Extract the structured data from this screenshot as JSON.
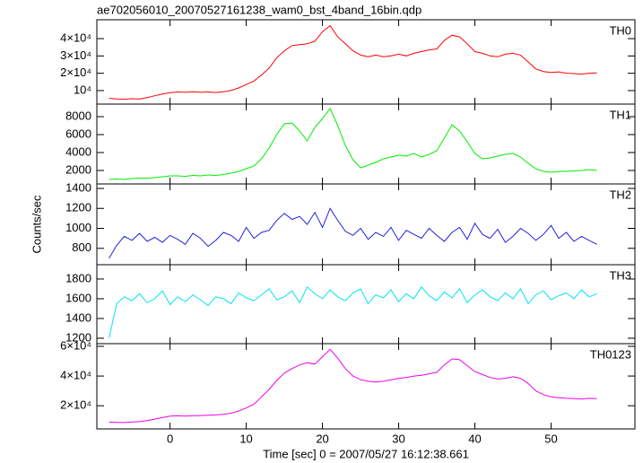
{
  "chart_data": {
    "type": "line",
    "title": "ae702056010_20070527161238_wam0_bst_4band_16bin.qdp",
    "xlabel": "Time [sec] 0 = 2007/05/27 16:12:38.661",
    "ylabel": "Counts/sec",
    "xlim": [
      -9.6,
      61
    ],
    "xticks": [
      0,
      10,
      20,
      30,
      40,
      50
    ],
    "x": [
      -8,
      -7,
      -6,
      -5,
      -4,
      -3,
      -2,
      -1,
      0,
      1,
      2,
      3,
      4,
      5,
      6,
      7,
      8,
      9,
      10,
      11,
      12,
      13,
      14,
      15,
      16,
      17,
      18,
      19,
      20,
      21,
      22,
      23,
      24,
      25,
      26,
      27,
      28,
      29,
      30,
      31,
      32,
      33,
      34,
      35,
      36,
      37,
      38,
      39,
      40,
      41,
      42,
      43,
      44,
      45,
      46,
      47,
      48,
      49,
      50,
      51,
      52,
      53,
      54,
      55,
      56
    ],
    "series": [
      {
        "name": "TH0",
        "color": "#ff0000",
        "ylim": [
          2200,
          50900
        ],
        "yticks": [
          {
            "value": 10000,
            "label": "10⁴"
          },
          {
            "value": 20000,
            "label": "2×10⁴"
          },
          {
            "value": 30000,
            "label": "3×10⁴"
          },
          {
            "value": 40000,
            "label": "4×10⁴"
          }
        ],
        "values": [
          5500,
          5200,
          5000,
          5300,
          5100,
          6000,
          7000,
          8000,
          8800,
          9200,
          9000,
          9300,
          9000,
          9200,
          8900,
          9300,
          10000,
          11500,
          13500,
          15500,
          19000,
          23000,
          29000,
          33000,
          36000,
          36500,
          37000,
          38500,
          44000,
          47500,
          41000,
          37000,
          33000,
          30500,
          29500,
          30500,
          29500,
          30000,
          31000,
          30000,
          31500,
          32500,
          33500,
          34000,
          39000,
          42000,
          41000,
          37000,
          32500,
          31500,
          30000,
          29500,
          31000,
          31500,
          30500,
          26500,
          22500,
          21000,
          20500,
          20800,
          20000,
          19800,
          19500,
          20000,
          20200
        ]
      },
      {
        "name": "TH1",
        "color": "#00ee00",
        "ylim": [
          500,
          9400
        ],
        "yticks": [
          2000,
          4000,
          6000,
          8000
        ],
        "values": [
          1000,
          1050,
          1000,
          1100,
          1150,
          1150,
          1200,
          1300,
          1400,
          1400,
          1350,
          1450,
          1400,
          1500,
          1450,
          1550,
          1700,
          1900,
          2200,
          2500,
          3300,
          4500,
          6000,
          7200,
          7300,
          6400,
          5300,
          6800,
          7800,
          8900,
          7000,
          4800,
          3200,
          2300,
          2600,
          2900,
          3300,
          3500,
          3700,
          3600,
          3900,
          3500,
          3800,
          4200,
          5600,
          7100,
          6400,
          5200,
          3900,
          3300,
          3400,
          3600,
          3800,
          3900,
          3500,
          2800,
          2200,
          1900,
          1800,
          1900,
          1900,
          1950,
          2000,
          2100,
          2000
        ]
      },
      {
        "name": "TH2",
        "color": "#2222dd",
        "ylim": [
          636,
          1445
        ],
        "yticks": [
          800,
          1000,
          1200,
          1400
        ],
        "values": [
          700,
          830,
          920,
          880,
          950,
          870,
          910,
          860,
          930,
          890,
          840,
          950,
          900,
          820,
          880,
          960,
          930,
          870,
          1010,
          900,
          960,
          980,
          1080,
          1150,
          1090,
          1120,
          1040,
          1160,
          1010,
          1200,
          1080,
          970,
          930,
          1000,
          890,
          960,
          920,
          1010,
          880,
          980,
          940,
          900,
          1000,
          930,
          870,
          960,
          1010,
          890,
          1050,
          940,
          900,
          990,
          860,
          920,
          1000,
          950,
          880,
          940,
          1030,
          900,
          960,
          870,
          920,
          880,
          840
        ]
      },
      {
        "name": "TH3",
        "color": "#00e5ee",
        "ylim": [
          1145,
          1945
        ],
        "yticks": [
          1200,
          1400,
          1600,
          1800
        ],
        "values": [
          1200,
          1550,
          1620,
          1580,
          1650,
          1560,
          1600,
          1680,
          1540,
          1620,
          1570,
          1640,
          1590,
          1530,
          1620,
          1600,
          1550,
          1660,
          1610,
          1580,
          1640,
          1700,
          1590,
          1620,
          1680,
          1560,
          1720,
          1650,
          1600,
          1690,
          1620,
          1580,
          1660,
          1700,
          1550,
          1640,
          1610,
          1690,
          1570,
          1650,
          1600,
          1720,
          1630,
          1580,
          1670,
          1610,
          1700,
          1560,
          1640,
          1690,
          1620,
          1580,
          1660,
          1600,
          1700,
          1550,
          1640,
          1680,
          1590,
          1630,
          1660,
          1600,
          1690,
          1620,
          1650
        ]
      },
      {
        "name": "TH0123",
        "color": "#ee00ee",
        "ylim": [
          4400,
          61800
        ],
        "yticks": [
          {
            "value": 20000,
            "label": "2×10⁴"
          },
          {
            "value": 40000,
            "label": "4×10⁴"
          },
          {
            "value": 60000,
            "label": "6×10⁴"
          }
        ],
        "values": [
          9000,
          8800,
          8700,
          9100,
          9300,
          10000,
          11000,
          12000,
          13000,
          13200,
          13000,
          13300,
          13400,
          13600,
          13800,
          14200,
          15000,
          16500,
          18500,
          21000,
          26000,
          31000,
          37000,
          42000,
          45000,
          47500,
          49000,
          48000,
          53000,
          58000,
          52000,
          45000,
          40000,
          37500,
          36500,
          36000,
          36500,
          37500,
          38500,
          39000,
          40000,
          40500,
          41500,
          42500,
          47500,
          51500,
          51000,
          47000,
          43000,
          41000,
          39000,
          38000,
          38500,
          39500,
          38500,
          35000,
          30000,
          27500,
          26000,
          25500,
          25000,
          24800,
          24500,
          25000,
          24800
        ]
      }
    ]
  }
}
